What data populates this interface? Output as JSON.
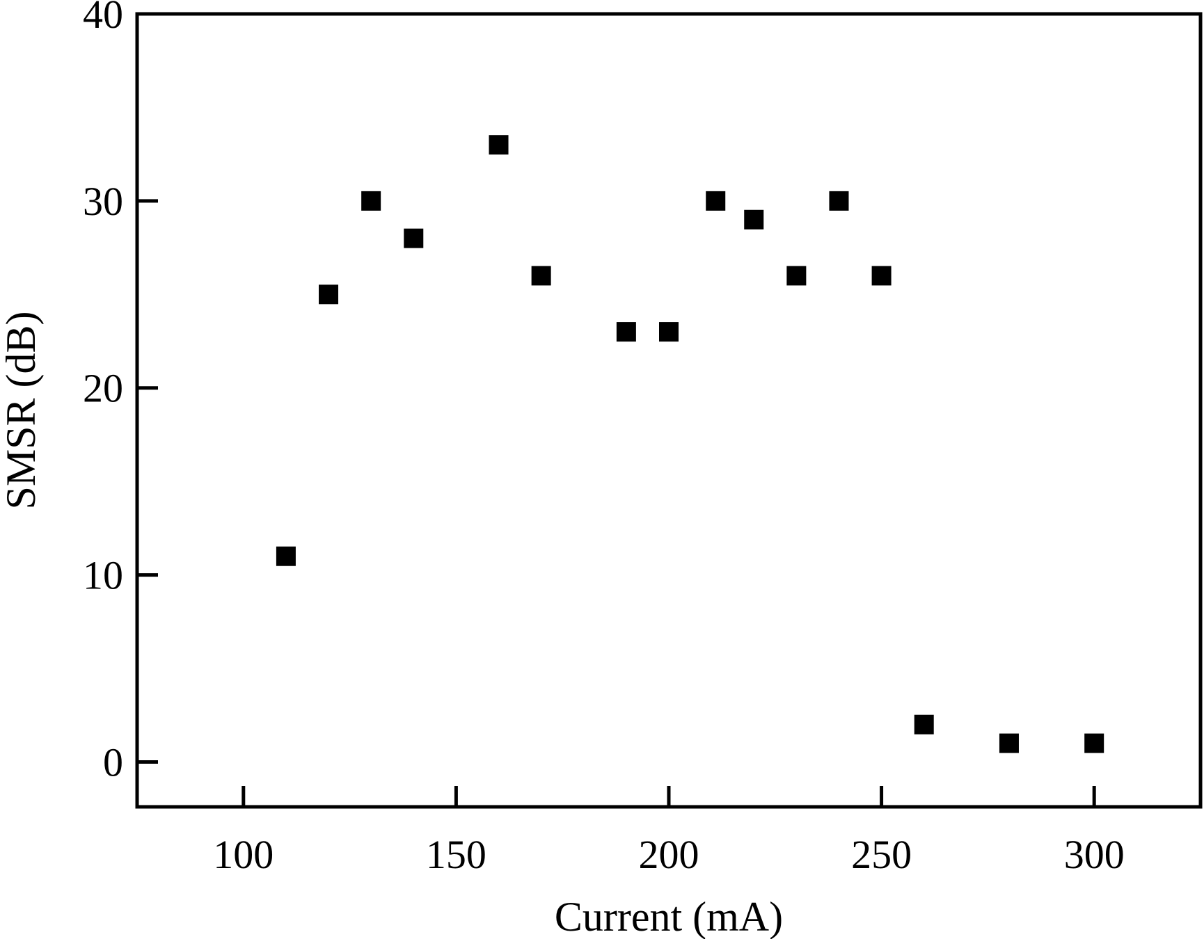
{
  "chart_data": {
    "type": "scatter",
    "title": "",
    "xlabel": "Current (mA)",
    "ylabel": "SMSR (dB)",
    "xlim": [
      75,
      325
    ],
    "ylim": [
      -2.4,
      40
    ],
    "xticks": [
      100,
      150,
      200,
      250,
      300
    ],
    "yticks": [
      0,
      10,
      20,
      30,
      40
    ],
    "xtick_labels": [
      "100",
      "150",
      "200",
      "250",
      "300"
    ],
    "ytick_labels": [
      "0",
      "10",
      "20",
      "30",
      "40"
    ],
    "grid": false,
    "legend": "none",
    "marker": "filled-square",
    "marker_color": "#000000",
    "series": [
      {
        "x": [
          110,
          120,
          130,
          140,
          160,
          170,
          190,
          200,
          211,
          220,
          230,
          240,
          250,
          260,
          280,
          300
        ],
        "y": [
          11,
          25,
          30,
          28,
          33,
          26,
          23,
          23,
          30,
          29,
          26,
          30,
          26,
          2,
          1,
          1
        ]
      }
    ]
  }
}
